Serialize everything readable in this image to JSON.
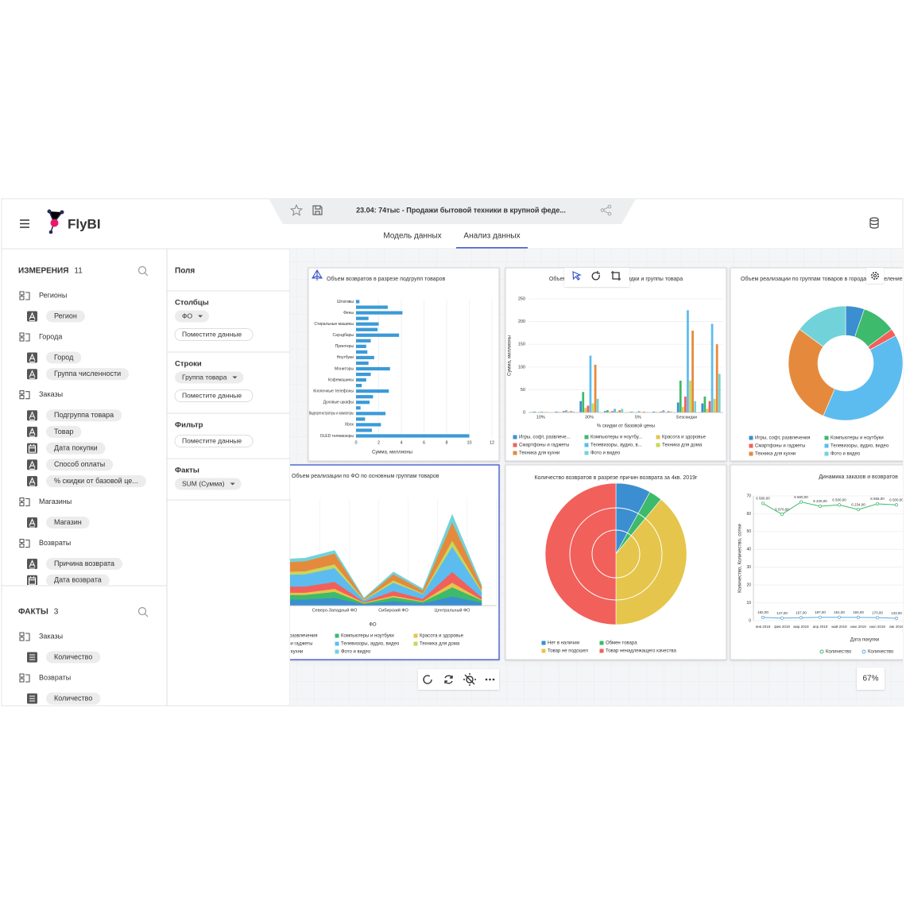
{
  "header": {
    "logo": "FlyBI",
    "report_title": "23.04: 74тыс - Продажи бытовой техники в крупной феде...",
    "tabs": [
      "Модель данных",
      "Анализ данных"
    ]
  },
  "sidebar": {
    "dimensions_title": "ИЗМЕРЕНИЯ",
    "dimensions_count": 11,
    "dimension_groups": [
      {
        "name": "Регионы",
        "items": [
          {
            "label": "Регион",
            "icon": "text"
          }
        ]
      },
      {
        "name": "Города",
        "items": [
          {
            "label": "Город",
            "icon": "text"
          },
          {
            "label": "Группа численности",
            "icon": "text"
          }
        ]
      },
      {
        "name": "Заказы",
        "items": [
          {
            "label": "Подгруппа товара",
            "icon": "text"
          },
          {
            "label": "Товар",
            "icon": "text"
          },
          {
            "label": "Дата покупки",
            "icon": "calendar"
          },
          {
            "label": "Способ оплаты",
            "icon": "text"
          },
          {
            "label": "% скидки от базовой це...",
            "icon": "text"
          }
        ]
      },
      {
        "name": "Магазины",
        "items": [
          {
            "label": "Магазин",
            "icon": "text"
          }
        ]
      },
      {
        "name": "Возвраты",
        "items": [
          {
            "label": "Причина возврата",
            "icon": "text"
          },
          {
            "label": "Дата возврата",
            "icon": "calendar"
          }
        ]
      }
    ],
    "facts_title": "ФАКТЫ",
    "facts_count": 3,
    "fact_groups": [
      {
        "name": "Заказы",
        "items": [
          {
            "label": "Количество",
            "icon": "number"
          }
        ]
      },
      {
        "name": "Возвраты",
        "items": [
          {
            "label": "Количество",
            "icon": "number"
          }
        ]
      }
    ]
  },
  "fields": {
    "title": "Поля",
    "sections": [
      {
        "title": "Столбцы",
        "chips": [
          "ФО"
        ],
        "placeholder": "Поместите данные"
      },
      {
        "title": "Строки",
        "chips": [
          "Группа товара"
        ],
        "placeholder": "Поместите данные"
      },
      {
        "title": "Фильтр",
        "chips": [],
        "placeholder": "Поместите данные"
      },
      {
        "title": "Факты",
        "chips": [
          "SUM (Сумма)"
        ]
      }
    ]
  },
  "zoom": "67%",
  "chart_data": [
    {
      "type": "bar",
      "horizontal": true,
      "title": "Объем возвратов в разрезе подгрупп товаров",
      "categories": [
        "Штативы",
        null,
        "Фены",
        null,
        "Стиральные машины",
        null,
        "Саундбары",
        null,
        "Принтеры",
        null,
        "Ноутбуки",
        null,
        "Мониторы",
        null,
        "Кофемашины",
        null,
        "Кнопочные телефоны",
        null,
        "Духовые шкафы",
        null,
        "Видеорегистраторы и навигаторы",
        null,
        "Xbox",
        null,
        "OLED телевизоры"
      ],
      "values": [
        0.3,
        2.8,
        4.1,
        1.1,
        2.0,
        1.9,
        3.8,
        1.3,
        0.9,
        1.0,
        1.6,
        1.1,
        3.0,
        1.3,
        0.9,
        0.5,
        2.9,
        1.5,
        1.2,
        0.4,
        2.6,
        0.8,
        2.2,
        1.4,
        10.0
      ],
      "color": "#3b9ad8",
      "xlabel": "Сумма, миллионы",
      "xlim": [
        0,
        12
      ],
      "xticks": [
        0,
        2,
        4,
        6,
        8,
        10,
        12
      ],
      "grid": true
    },
    {
      "type": "bar",
      "horizontal": false,
      "title": "Объем возвратов в разрезе скидки и группы товара",
      "categories": [
        "10%",
        null,
        "30%",
        null,
        "5%",
        null,
        "Безскидки",
        null
      ],
      "xlabel": "% скидки от базовой цены",
      "ylabel": "Сумма, миллионы",
      "ylim": [
        0,
        250
      ],
      "yticks": [
        0,
        50,
        100,
        150,
        200,
        250
      ],
      "grid": true,
      "series": [
        {
          "name": "Игры, софт, развлече...",
          "color": "#3b8fd0",
          "values": [
            1,
            2,
            25,
            3,
            1,
            2,
            22,
            20
          ]
        },
        {
          "name": "Компьютеры и ноутбу...",
          "color": "#3dba6b",
          "values": [
            2,
            1,
            45,
            5,
            2,
            1,
            70,
            35
          ]
        },
        {
          "name": "Красота и здоровье",
          "color": "#e5c54b",
          "values": [
            0,
            1,
            10,
            2,
            0,
            1,
            12,
            8
          ]
        },
        {
          "name": "Смартфоны и гаджеты",
          "color": "#f2605b",
          "values": [
            1,
            3,
            15,
            3,
            1,
            2,
            35,
            25
          ]
        },
        {
          "name": "Телевизоры, аудио, в...",
          "color": "#5cbcef",
          "values": [
            2,
            5,
            125,
            8,
            3,
            5,
            225,
            195
          ]
        },
        {
          "name": "Техника для дома",
          "color": "#c9d65a",
          "values": [
            1,
            2,
            20,
            2,
            1,
            1,
            70,
            30
          ]
        },
        {
          "name": "Техника для кухни",
          "color": "#e58a3c",
          "values": [
            1,
            3,
            105,
            5,
            2,
            3,
            180,
            150
          ]
        },
        {
          "name": "Фото и видео",
          "color": "#71d3d9",
          "values": [
            0,
            2,
            30,
            8,
            1,
            2,
            25,
            85
          ]
        }
      ]
    },
    {
      "type": "donut",
      "title": "Объем реализации по группам товаров в городах с населением",
      "categories": [
        "Игры, софт, развлечения",
        "Компьютеры и ноутбуки",
        "Смартфоны и гаджеты",
        "Телевизоры, аудио, видео",
        "Техника для кухни",
        "Фото и видео"
      ],
      "values": [
        5,
        9,
        2,
        37,
        27,
        14
      ],
      "colors": [
        "#3b8fd0",
        "#3dba6b",
        "#f2605b",
        "#5cbcef",
        "#e58a3c",
        "#71d3d9"
      ]
    },
    {
      "type": "area",
      "stacked": true,
      "title": "Объем реализации по ФО по основным группам товаров",
      "categories": [
        null,
        null,
        "Северо-Западный ФО",
        null,
        "Сибирский ФО",
        null,
        "Центральный ФО",
        null
      ],
      "xlabel": "ФО",
      "ylim": [
        0,
        140
      ],
      "series": [
        {
          "name": "Игры, софт, развлечения",
          "color": "#3b8fd0",
          "values": [
            8,
            8,
            10,
            2,
            6,
            3,
            12,
            4
          ]
        },
        {
          "name": "Компьютеры и ноутбуки",
          "color": "#3dba6b",
          "values": [
            6,
            6,
            8,
            1,
            5,
            2,
            12,
            3
          ]
        },
        {
          "name": "Красота и здоровье",
          "color": "#e5c54b",
          "values": [
            3,
            3,
            4,
            1,
            2,
            1,
            6,
            1
          ]
        },
        {
          "name": "Смартфоны и гаджеты",
          "color": "#f2605b",
          "values": [
            8,
            8,
            9,
            1,
            6,
            3,
            14,
            3
          ]
        },
        {
          "name": "Телевизоры, аудио, видео",
          "color": "#5cbcef",
          "values": [
            15,
            16,
            18,
            2,
            11,
            6,
            33,
            7
          ]
        },
        {
          "name": "Техника для дома",
          "color": "#c9d65a",
          "values": [
            4,
            4,
            5,
            1,
            3,
            1,
            8,
            2
          ]
        },
        {
          "name": "Техника для кухни",
          "color": "#e58a3c",
          "values": [
            12,
            13,
            14,
            1,
            8,
            4,
            24,
            5
          ]
        },
        {
          "name": "Фото и видео",
          "color": "#71d3d9",
          "values": [
            4,
            4,
            4,
            1,
            3,
            2,
            10,
            2
          ]
        }
      ]
    },
    {
      "type": "pie",
      "title": "Количество возвратов в разрезе причин возврата за 4кв. 2019г",
      "categories": [
        "Нет в наличии",
        "Обмен товара",
        "Товар не подошел",
        "Товар ненадлежащего качества"
      ],
      "values": [
        8,
        3,
        39,
        50
      ],
      "colors": [
        "#3b8fd0",
        "#3dba6b",
        "#e5c54b",
        "#f2605b"
      ]
    },
    {
      "type": "line",
      "title": "Динамика заказов и возвратов",
      "categories": [
        "янв 2019",
        "фев 2019",
        "мар 2019",
        "апр 2019",
        "май 2019",
        "июн 2019",
        "июл 2019",
        "авг 2019"
      ],
      "ylabel": "Количество, Количество, сотни",
      "xlabel": "Дата покупки",
      "ylim": [
        0,
        70
      ],
      "yticks": [
        0,
        10,
        20,
        30,
        40,
        50,
        60,
        70
      ],
      "grid": true,
      "series": [
        {
          "name": "Количество",
          "color": "#3dba6b",
          "values": [
            65.8,
            59.7,
            66.6,
            64.2,
            65.0,
            62.34,
            65.55,
            65.0
          ],
          "value_labels": [
            "6 580,00",
            "5 970,00",
            "6 660,00",
            "6 420,00",
            "6 500,00",
            "6 234,00",
            "6 555,00",
            "6 500,00"
          ]
        },
        {
          "name": "Количество",
          "color": "#5aa8e0",
          "values": [
            1.82,
            1.47,
            1.67,
            1.87,
            1.91,
            1.84,
            1.7,
            1.33
          ],
          "value_labels": [
            "182,00",
            "147,00",
            "167,00",
            "187,00",
            "191,00",
            "184,00",
            "170,00",
            "133,00"
          ]
        }
      ]
    }
  ]
}
